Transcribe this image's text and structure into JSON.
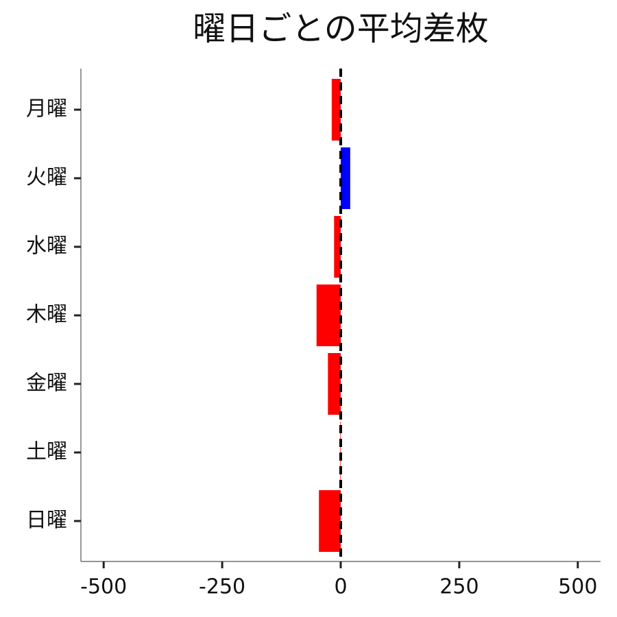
{
  "chart_data": {
    "type": "barh",
    "title": "曜日ごとの平均差枚",
    "categories": [
      "月曜",
      "火曜",
      "水曜",
      "木曜",
      "金曜",
      "土曜",
      "日曜"
    ],
    "values": [
      -19,
      20,
      -14,
      -51,
      -27,
      -1,
      -46
    ],
    "colors": [
      "#ff0000",
      "#0000ff",
      "#ff0000",
      "#ff0000",
      "#ff0000",
      "#ff0000",
      "#ff0000"
    ],
    "xlim": [
      -548,
      548
    ],
    "xticks": [
      -500,
      -250,
      0,
      250,
      500
    ],
    "vline": 0,
    "grid": false
  }
}
